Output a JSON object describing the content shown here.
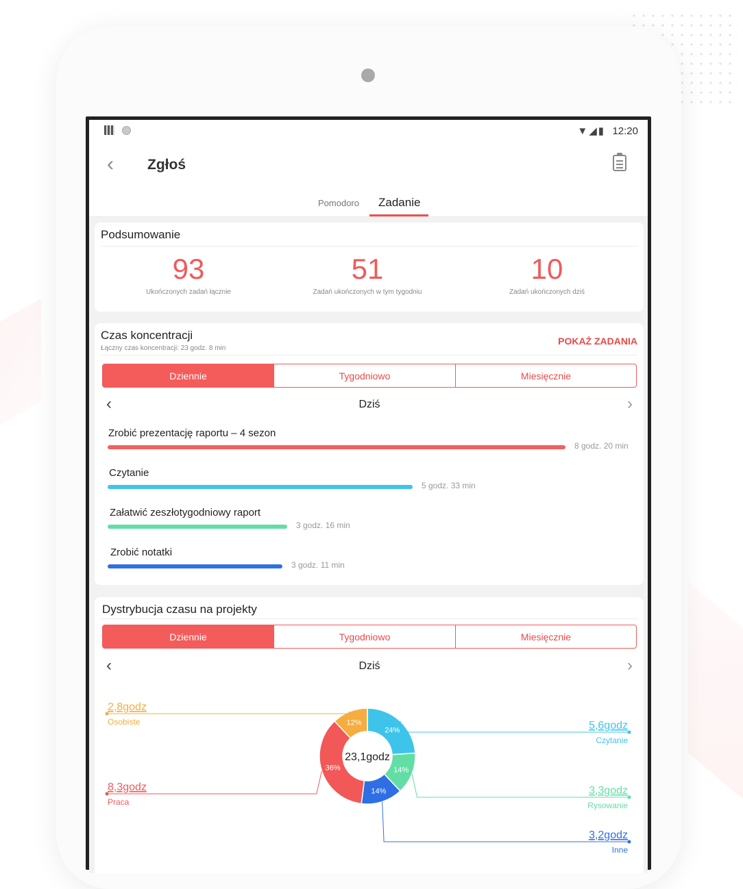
{
  "status_bar": {
    "time": "12:20",
    "icons": "▼◢▮"
  },
  "app_bar": {
    "title": "Zgłoś",
    "back_icon": "chevron-left-icon",
    "report_icon": "clipboard-icon"
  },
  "tabs": {
    "pomodoro": "Pomodoro",
    "zadanie": "Zadanie",
    "active": "Zadanie"
  },
  "summary": {
    "title": "Podsumowanie",
    "stats": [
      {
        "value": "93",
        "label": "Ukończonych zadań łącznie"
      },
      {
        "value": "51",
        "label": "Zadań ukończonych w tym tygodniu"
      },
      {
        "value": "10",
        "label": "Zadań ukończonych dziś"
      }
    ]
  },
  "focus": {
    "title": "Czas koncentracji",
    "subtitle": "Łączny czas koncentracji: 23 godz. 8 min",
    "show_tasks": "POKAŻ ZADANIA",
    "segments": [
      "Dziennie",
      "Tygodniowo",
      "Miesięcznie"
    ],
    "period": "Dziś",
    "tasks": [
      {
        "name": "Zrobić prezentację raportu – 4 sezon",
        "duration": "8 godz. 20 min",
        "minutes": 500,
        "color": "#f06262"
      },
      {
        "name": "Czytanie",
        "duration": "5 godz. 33 min",
        "minutes": 333,
        "color": "#3ec4ea"
      },
      {
        "name": "Załatwić zeszłotygodniowy raport",
        "duration": "3 godz. 16 min",
        "minutes": 196,
        "color": "#62dea4"
      },
      {
        "name": "Zrobić notatki",
        "duration": "3 godz. 11 min",
        "minutes": 191,
        "color": "#2f6fe4"
      }
    ]
  },
  "distribution": {
    "title": "Dystrybucja czasu na projekty",
    "segments": [
      "Dziennie",
      "Tygodniowo",
      "Miesięcznie"
    ],
    "period": "Dziś",
    "center_label": "23,1godz"
  },
  "chart_data": {
    "type": "pie",
    "center_label": "23,1godz",
    "slices": [
      {
        "name": "Czytanie",
        "hours_label": "5,6godz",
        "percent": 24,
        "color": "#3ec4ea"
      },
      {
        "name": "Rysowanie",
        "hours_label": "3,3godz",
        "percent": 14,
        "color": "#62dea4"
      },
      {
        "name": "Inne",
        "hours_label": "3,2godz",
        "percent": 14,
        "color": "#2f6fe4"
      },
      {
        "name": "Praca",
        "hours_label": "8,3godz",
        "percent": 36,
        "color": "#f25858"
      },
      {
        "name": "Osobiste",
        "hours_label": "2,8godz",
        "percent": 12,
        "color": "#f5ad3e"
      }
    ]
  }
}
